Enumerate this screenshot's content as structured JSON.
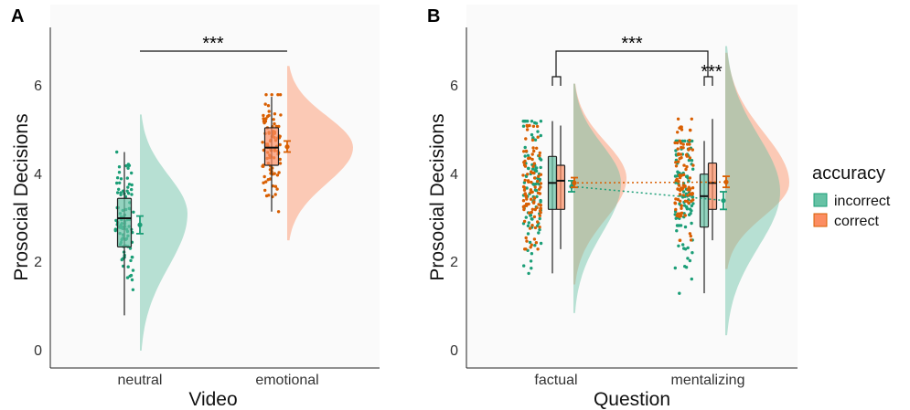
{
  "colors": {
    "incorrect": "#1b9e77",
    "correct": "#d95f02",
    "incorrect_fill": "#66c2a5",
    "correct_fill": "#fc8d62",
    "panel_bg": "#fafafa"
  },
  "chart_data": [
    {
      "panel_label": "A",
      "type": "raincloud",
      "xlabel": "Video",
      "ylabel": "Prosocial Decisions",
      "categories": [
        "neutral",
        "emotional"
      ],
      "ylim": [
        -0.3,
        7.3
      ],
      "yticks": [
        "0",
        "2",
        "4",
        "6"
      ],
      "grid": false,
      "groups": [
        {
          "category": "neutral",
          "accuracy": "incorrect",
          "median": 3.0,
          "q1": 2.35,
          "q3": 3.45,
          "whisker_low": 0.8,
          "whisker_high": 4.5,
          "mean": 2.85,
          "ci_low": 2.65,
          "ci_high": 3.05,
          "points_min": 0.8,
          "points_max": 4.5,
          "density_peak": 3.1,
          "density_range": [
            0.0,
            5.35
          ]
        },
        {
          "category": "emotional",
          "accuracy": "correct",
          "median": 4.6,
          "q1": 4.2,
          "q3": 5.05,
          "whisker_low": 3.15,
          "whisker_high": 5.75,
          "mean": 4.62,
          "ci_low": 4.5,
          "ci_high": 4.75,
          "points_min": 3.15,
          "points_max": 5.8,
          "density_peak": 4.6,
          "density_range": [
            2.5,
            6.45
          ]
        }
      ],
      "significance": [
        {
          "label": "***",
          "from": "neutral",
          "to": "emotional",
          "y": 6.8
        }
      ]
    },
    {
      "panel_label": "B",
      "type": "raincloud",
      "xlabel": "Question",
      "ylabel": "Prosocial Decisions",
      "categories": [
        "factual",
        "mentalizing"
      ],
      "ylim": [
        -0.3,
        7.3
      ],
      "yticks": [
        "0",
        "2",
        "4",
        "6"
      ],
      "grid": false,
      "series": [
        {
          "name": "incorrect",
          "values": [
            {
              "category": "factual",
              "median": 3.8,
              "q1": 3.2,
              "q3": 4.4,
              "whisker_low": 1.75,
              "whisker_high": 5.2,
              "mean": 3.72,
              "ci_low": 3.6,
              "ci_high": 3.85,
              "density_peak": 3.8,
              "density_range": [
                0.85,
                6.05
              ]
            },
            {
              "category": "mentalizing",
              "median": 3.5,
              "q1": 2.8,
              "q3": 4.0,
              "whisker_low": 1.3,
              "whisker_high": 4.75,
              "mean": 3.4,
              "ci_low": 3.2,
              "ci_high": 3.6,
              "density_peak": 3.6,
              "density_range": [
                0.35,
                6.9
              ]
            }
          ]
        },
        {
          "name": "correct",
          "values": [
            {
              "category": "factual",
              "median": 3.85,
              "q1": 3.2,
              "q3": 4.2,
              "whisker_low": 2.3,
              "whisker_high": 5.1,
              "mean": 3.8,
              "ci_low": 3.7,
              "ci_high": 3.92,
              "density_peak": 3.9,
              "density_range": [
                1.5,
                6.05
              ]
            },
            {
              "category": "mentalizing",
              "median": 3.8,
              "q1": 3.2,
              "q3": 4.25,
              "whisker_low": 2.5,
              "whisker_high": 5.25,
              "mean": 3.82,
              "ci_low": 3.7,
              "ci_high": 3.95,
              "density_peak": 3.8,
              "density_range": [
                1.85,
                6.75
              ]
            }
          ]
        }
      ],
      "significance": [
        {
          "label": "***",
          "from": "factual",
          "to": "mentalizing",
          "y": 6.8
        },
        {
          "label": "***",
          "within": "mentalizing",
          "y": 6.2
        }
      ],
      "legend": {
        "title": "accuracy",
        "items": [
          "incorrect",
          "correct"
        ],
        "placement": "right"
      }
    }
  ]
}
